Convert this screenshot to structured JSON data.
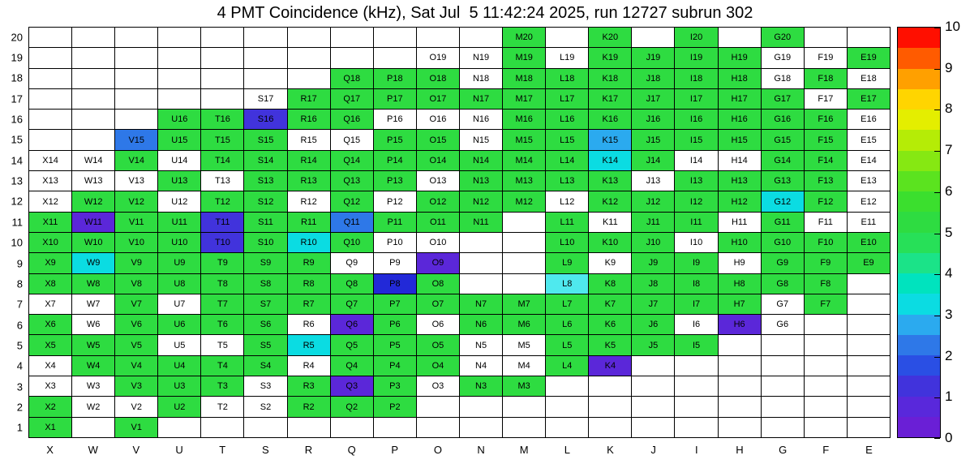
{
  "title": "4 PMT Coincidence (kHz), Sat Jul  5 11:42:24 2025, run 12727 subrun 302",
  "chart_data": {
    "type": "heatmap",
    "title": "4 PMT Coincidence (kHz), Sat Jul  5 11:42:24 2025, run 12727 subrun 302",
    "units": "kHz",
    "columns": [
      "X",
      "W",
      "V",
      "U",
      "T",
      "S",
      "R",
      "Q",
      "P",
      "O",
      "N",
      "M",
      "L",
      "K",
      "J",
      "I",
      "H",
      "G",
      "F",
      "E"
    ],
    "rows": [
      20,
      19,
      18,
      17,
      16,
      15,
      14,
      13,
      12,
      11,
      10,
      9,
      8,
      7,
      6,
      5,
      4,
      3,
      2,
      1
    ],
    "colorbar": {
      "min": 0,
      "max": 10,
      "ticks": [
        0,
        1,
        2,
        3,
        4,
        5,
        6,
        7,
        8,
        9,
        10
      ],
      "band_colors": [
        "#6A1FD6",
        "#5928DB",
        "#4133DC",
        "#2A4FE4",
        "#2E78E8",
        "#2BAAEF",
        "#0BDCE2",
        "#00E3BE",
        "#1BE388",
        "#27E058",
        "#2EDC41",
        "#3BDF2E",
        "#5BE31F",
        "#86E812",
        "#B5EC06",
        "#E4EE00",
        "#FFD500",
        "#FFA000",
        "#FF5B00",
        "#FF0F00"
      ]
    },
    "palette": {
      "g": "#2EDC41",
      "c": "#0BDCE2",
      "lc": "#4FE9EE",
      "s": "#2BAAEF",
      "b": "#2E78E8",
      "d": "#4133DC",
      "n": "#2229D8",
      "v": "#5B27D9",
      "w": "#FFFFFF"
    },
    "palette_value_estimates_khz": {
      "g": 5.0,
      "c": 3.2,
      "lc": 3.4,
      "s": 2.7,
      "b": 2.2,
      "d": 1.2,
      "n": 1.0,
      "v": 0.7,
      "w": 0
    },
    "cells": [
      [
        null,
        null,
        null,
        null,
        null,
        null,
        null,
        null,
        null,
        null,
        null,
        [
          "M20",
          "g"
        ],
        null,
        [
          "K20",
          "g"
        ],
        null,
        [
          "I20",
          "g"
        ],
        null,
        [
          "G20",
          "g"
        ],
        null,
        null
      ],
      [
        null,
        null,
        null,
        null,
        null,
        null,
        null,
        null,
        null,
        [
          "O19",
          "w"
        ],
        [
          "N19",
          "w"
        ],
        [
          "M19",
          "g"
        ],
        [
          "L19",
          "w"
        ],
        [
          "K19",
          "g"
        ],
        [
          "J19",
          "g"
        ],
        [
          "I19",
          "g"
        ],
        [
          "H19",
          "g"
        ],
        [
          "G19",
          "w"
        ],
        [
          "F19",
          "w"
        ],
        [
          "E19",
          "g"
        ]
      ],
      [
        null,
        null,
        null,
        null,
        null,
        null,
        null,
        [
          "Q18",
          "g"
        ],
        [
          "P18",
          "g"
        ],
        [
          "O18",
          "g"
        ],
        [
          "N18",
          "w"
        ],
        [
          "M18",
          "g"
        ],
        [
          "L18",
          "g"
        ],
        [
          "K18",
          "g"
        ],
        [
          "J18",
          "g"
        ],
        [
          "I18",
          "g"
        ],
        [
          "H18",
          "g"
        ],
        [
          "G18",
          "w"
        ],
        [
          "F18",
          "g"
        ],
        [
          "E18",
          "w"
        ]
      ],
      [
        null,
        null,
        null,
        null,
        null,
        [
          "S17",
          "w"
        ],
        [
          "R17",
          "g"
        ],
        [
          "Q17",
          "g"
        ],
        [
          "P17",
          "g"
        ],
        [
          "O17",
          "g"
        ],
        [
          "N17",
          "g"
        ],
        [
          "M17",
          "g"
        ],
        [
          "L17",
          "g"
        ],
        [
          "K17",
          "g"
        ],
        [
          "J17",
          "g"
        ],
        [
          "I17",
          "g"
        ],
        [
          "H17",
          "g"
        ],
        [
          "G17",
          "g"
        ],
        [
          "F17",
          "w"
        ],
        [
          "E17",
          "g"
        ]
      ],
      [
        null,
        null,
        null,
        [
          "U16",
          "g"
        ],
        [
          "T16",
          "g"
        ],
        [
          "S16",
          "d"
        ],
        [
          "R16",
          "g"
        ],
        [
          "Q16",
          "g"
        ],
        [
          "P16",
          "w"
        ],
        [
          "O16",
          "w"
        ],
        [
          "N16",
          "w"
        ],
        [
          "M16",
          "g"
        ],
        [
          "L16",
          "g"
        ],
        [
          "K16",
          "g"
        ],
        [
          "J16",
          "g"
        ],
        [
          "I16",
          "g"
        ],
        [
          "H16",
          "g"
        ],
        [
          "G16",
          "g"
        ],
        [
          "F16",
          "g"
        ],
        [
          "E16",
          "w"
        ]
      ],
      [
        null,
        null,
        [
          "V15",
          "b"
        ],
        [
          "U15",
          "g"
        ],
        [
          "T15",
          "g"
        ],
        [
          "S15",
          "g"
        ],
        [
          "R15",
          "w"
        ],
        [
          "Q15",
          "w"
        ],
        [
          "P15",
          "g"
        ],
        [
          "O15",
          "g"
        ],
        [
          "N15",
          "w"
        ],
        [
          "M15",
          "g"
        ],
        [
          "L15",
          "g"
        ],
        [
          "K15",
          "s"
        ],
        [
          "J15",
          "g"
        ],
        [
          "I15",
          "g"
        ],
        [
          "H15",
          "g"
        ],
        [
          "G15",
          "g"
        ],
        [
          "F15",
          "g"
        ],
        [
          "E15",
          "w"
        ]
      ],
      [
        [
          "X14",
          "w"
        ],
        [
          "W14",
          "w"
        ],
        [
          "V14",
          "g"
        ],
        [
          "U14",
          "w"
        ],
        [
          "T14",
          "g"
        ],
        [
          "S14",
          "g"
        ],
        [
          "R14",
          "g"
        ],
        [
          "Q14",
          "g"
        ],
        [
          "P14",
          "g"
        ],
        [
          "O14",
          "g"
        ],
        [
          "N14",
          "g"
        ],
        [
          "M14",
          "g"
        ],
        [
          "L14",
          "g"
        ],
        [
          "K14",
          "c"
        ],
        [
          "J14",
          "g"
        ],
        [
          "I14",
          "w"
        ],
        [
          "H14",
          "w"
        ],
        [
          "G14",
          "g"
        ],
        [
          "F14",
          "g"
        ],
        [
          "E14",
          "w"
        ]
      ],
      [
        [
          "X13",
          "w"
        ],
        [
          "W13",
          "w"
        ],
        [
          "V13",
          "w"
        ],
        [
          "U13",
          "g"
        ],
        [
          "T13",
          "w"
        ],
        [
          "S13",
          "g"
        ],
        [
          "R13",
          "g"
        ],
        [
          "Q13",
          "g"
        ],
        [
          "P13",
          "g"
        ],
        [
          "O13",
          "w"
        ],
        [
          "N13",
          "g"
        ],
        [
          "M13",
          "g"
        ],
        [
          "L13",
          "g"
        ],
        [
          "K13",
          "g"
        ],
        [
          "J13",
          "w"
        ],
        [
          "I13",
          "g"
        ],
        [
          "H13",
          "g"
        ],
        [
          "G13",
          "g"
        ],
        [
          "F13",
          "g"
        ],
        [
          "E13",
          "w"
        ]
      ],
      [
        [
          "X12",
          "w"
        ],
        [
          "W12",
          "g"
        ],
        [
          "V12",
          "g"
        ],
        [
          "U12",
          "w"
        ],
        [
          "T12",
          "g"
        ],
        [
          "S12",
          "g"
        ],
        [
          "R12",
          "w"
        ],
        [
          "Q12",
          "g"
        ],
        [
          "P12",
          "w"
        ],
        [
          "O12",
          "g"
        ],
        [
          "N12",
          "g"
        ],
        [
          "M12",
          "g"
        ],
        [
          "L12",
          "w"
        ],
        [
          "K12",
          "g"
        ],
        [
          "J12",
          "g"
        ],
        [
          "I12",
          "g"
        ],
        [
          "H12",
          "g"
        ],
        [
          "G12",
          "c"
        ],
        [
          "F12",
          "g"
        ],
        [
          "E12",
          "w"
        ]
      ],
      [
        [
          "X11",
          "g"
        ],
        [
          "W11",
          "v"
        ],
        [
          "V11",
          "g"
        ],
        [
          "U11",
          "g"
        ],
        [
          "T11",
          "d"
        ],
        [
          "S11",
          "g"
        ],
        [
          "R11",
          "g"
        ],
        [
          "Q11",
          "b"
        ],
        [
          "P11",
          "g"
        ],
        [
          "O11",
          "g"
        ],
        [
          "N11",
          "g"
        ],
        null,
        [
          "L11",
          "g"
        ],
        [
          "K11",
          "w"
        ],
        [
          "J11",
          "g"
        ],
        [
          "I11",
          "g"
        ],
        [
          "H11",
          "w"
        ],
        [
          "G11",
          "g"
        ],
        [
          "F11",
          "w"
        ],
        [
          "E11",
          "w"
        ]
      ],
      [
        [
          "X10",
          "g"
        ],
        [
          "W10",
          "g"
        ],
        [
          "V10",
          "g"
        ],
        [
          "U10",
          "g"
        ],
        [
          "T10",
          "d"
        ],
        [
          "S10",
          "g"
        ],
        [
          "R10",
          "c"
        ],
        [
          "Q10",
          "g"
        ],
        [
          "P10",
          "w"
        ],
        [
          "O10",
          "w"
        ],
        null,
        null,
        [
          "L10",
          "g"
        ],
        [
          "K10",
          "g"
        ],
        [
          "J10",
          "g"
        ],
        [
          "I10",
          "w"
        ],
        [
          "H10",
          "g"
        ],
        [
          "G10",
          "g"
        ],
        [
          "F10",
          "g"
        ],
        [
          "E10",
          "g"
        ]
      ],
      [
        [
          "X9",
          "g"
        ],
        [
          "W9",
          "c"
        ],
        [
          "V9",
          "g"
        ],
        [
          "U9",
          "g"
        ],
        [
          "T9",
          "g"
        ],
        [
          "S9",
          "g"
        ],
        [
          "R9",
          "g"
        ],
        [
          "Q9",
          "w"
        ],
        [
          "P9",
          "w"
        ],
        [
          "O9",
          "v"
        ],
        null,
        null,
        [
          "L9",
          "g"
        ],
        [
          "K9",
          "w"
        ],
        [
          "J9",
          "g"
        ],
        [
          "I9",
          "g"
        ],
        [
          "H9",
          "w"
        ],
        [
          "G9",
          "g"
        ],
        [
          "F9",
          "g"
        ],
        [
          "E9",
          "g"
        ]
      ],
      [
        [
          "X8",
          "g"
        ],
        [
          "W8",
          "g"
        ],
        [
          "V8",
          "g"
        ],
        [
          "U8",
          "g"
        ],
        [
          "T8",
          "g"
        ],
        [
          "S8",
          "g"
        ],
        [
          "R8",
          "g"
        ],
        [
          "Q8",
          "g"
        ],
        [
          "P8",
          "n"
        ],
        [
          "O8",
          "g"
        ],
        null,
        null,
        [
          "L8",
          "lc"
        ],
        [
          "K8",
          "g"
        ],
        [
          "J8",
          "g"
        ],
        [
          "I8",
          "g"
        ],
        [
          "H8",
          "g"
        ],
        [
          "G8",
          "g"
        ],
        [
          "F8",
          "g"
        ],
        null
      ],
      [
        [
          "X7",
          "w"
        ],
        [
          "W7",
          "w"
        ],
        [
          "V7",
          "g"
        ],
        [
          "U7",
          "w"
        ],
        [
          "T7",
          "g"
        ],
        [
          "S7",
          "g"
        ],
        [
          "R7",
          "g"
        ],
        [
          "Q7",
          "g"
        ],
        [
          "P7",
          "g"
        ],
        [
          "O7",
          "g"
        ],
        [
          "N7",
          "g"
        ],
        [
          "M7",
          "g"
        ],
        [
          "L7",
          "g"
        ],
        [
          "K7",
          "g"
        ],
        [
          "J7",
          "g"
        ],
        [
          "I7",
          "g"
        ],
        [
          "H7",
          "g"
        ],
        [
          "G7",
          "w"
        ],
        [
          "F7",
          "g"
        ],
        null
      ],
      [
        [
          "X6",
          "g"
        ],
        [
          "W6",
          "w"
        ],
        [
          "V6",
          "g"
        ],
        [
          "U6",
          "g"
        ],
        [
          "T6",
          "g"
        ],
        [
          "S6",
          "g"
        ],
        [
          "R6",
          "w"
        ],
        [
          "Q6",
          "v"
        ],
        [
          "P6",
          "g"
        ],
        [
          "O6",
          "w"
        ],
        [
          "N6",
          "g"
        ],
        [
          "M6",
          "g"
        ],
        [
          "L6",
          "g"
        ],
        [
          "K6",
          "g"
        ],
        [
          "J6",
          "g"
        ],
        [
          "I6",
          "w"
        ],
        [
          "H6",
          "v"
        ],
        [
          "G6",
          "w"
        ],
        null,
        null
      ],
      [
        [
          "X5",
          "g"
        ],
        [
          "W5",
          "g"
        ],
        [
          "V5",
          "g"
        ],
        [
          "U5",
          "w"
        ],
        [
          "T5",
          "w"
        ],
        [
          "S5",
          "g"
        ],
        [
          "R5",
          "c"
        ],
        [
          "Q5",
          "g"
        ],
        [
          "P5",
          "g"
        ],
        [
          "O5",
          "g"
        ],
        [
          "N5",
          "w"
        ],
        [
          "M5",
          "w"
        ],
        [
          "L5",
          "g"
        ],
        [
          "K5",
          "g"
        ],
        [
          "J5",
          "g"
        ],
        [
          "I5",
          "g"
        ],
        null,
        null,
        null,
        null
      ],
      [
        [
          "X4",
          "w"
        ],
        [
          "W4",
          "g"
        ],
        [
          "V4",
          "g"
        ],
        [
          "U4",
          "g"
        ],
        [
          "T4",
          "g"
        ],
        [
          "S4",
          "g"
        ],
        [
          "R4",
          "w"
        ],
        [
          "Q4",
          "g"
        ],
        [
          "P4",
          "g"
        ],
        [
          "O4",
          "g"
        ],
        [
          "N4",
          "w"
        ],
        [
          "M4",
          "w"
        ],
        [
          "L4",
          "g"
        ],
        [
          "K4",
          "v"
        ],
        null,
        null,
        null,
        null,
        null,
        null
      ],
      [
        [
          "X3",
          "w"
        ],
        [
          "W3",
          "w"
        ],
        [
          "V3",
          "g"
        ],
        [
          "U3",
          "g"
        ],
        [
          "T3",
          "g"
        ],
        [
          "S3",
          "w"
        ],
        [
          "R3",
          "g"
        ],
        [
          "Q3",
          "v"
        ],
        [
          "P3",
          "g"
        ],
        [
          "O3",
          "w"
        ],
        [
          "N3",
          "g"
        ],
        [
          "M3",
          "g"
        ],
        null,
        null,
        null,
        null,
        null,
        null,
        null,
        null
      ],
      [
        [
          "X2",
          "g"
        ],
        [
          "W2",
          "w"
        ],
        [
          "V2",
          "w"
        ],
        [
          "U2",
          "g"
        ],
        [
          "T2",
          "w"
        ],
        [
          "S2",
          "w"
        ],
        [
          "R2",
          "g"
        ],
        [
          "Q2",
          "g"
        ],
        [
          "P2",
          "g"
        ],
        null,
        null,
        null,
        null,
        null,
        null,
        null,
        null,
        null,
        null,
        null
      ],
      [
        [
          "X1",
          "g"
        ],
        null,
        [
          "V1",
          "g"
        ],
        null,
        null,
        null,
        null,
        null,
        null,
        null,
        null,
        null,
        null,
        null,
        null,
        null,
        null,
        null,
        null,
        null
      ]
    ]
  }
}
